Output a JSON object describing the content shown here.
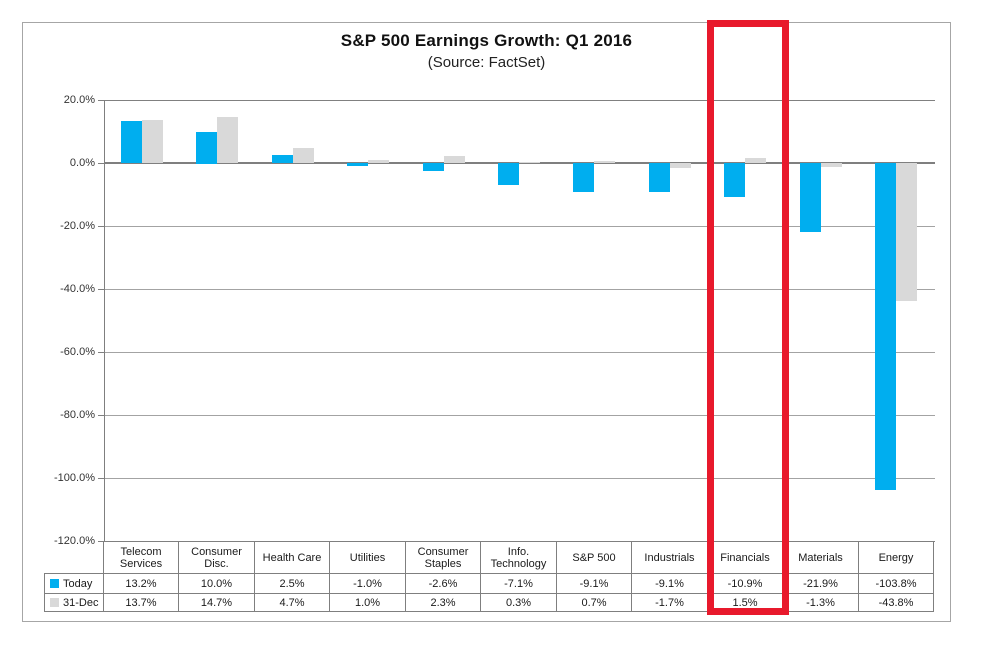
{
  "chart_data": {
    "type": "bar",
    "title": "S&P 500 Earnings Growth: Q1 2016",
    "subtitle": "(Source: FactSet)",
    "categories": [
      "Telecom Services",
      "Consumer Disc.",
      "Health Care",
      "Utilities",
      "Consumer Staples",
      "Info. Technology",
      "S&P 500",
      "Industrials",
      "Financials",
      "Materials",
      "Energy"
    ],
    "series": [
      {
        "name": "Today",
        "color": "#00AEEF",
        "values": [
          13.2,
          10.0,
          2.5,
          -1.0,
          -2.6,
          -7.1,
          -9.1,
          -9.1,
          -10.9,
          -21.9,
          -103.8
        ]
      },
      {
        "name": "31-Dec",
        "color": "#D9D9D9",
        "values": [
          13.7,
          14.7,
          4.7,
          1.0,
          2.3,
          0.3,
          0.7,
          -1.7,
          1.5,
          -1.3,
          -43.8
        ]
      }
    ],
    "y_axis": {
      "min": -120,
      "max": 20,
      "step": 20,
      "tick_labels": [
        "20.0%",
        "0.0%",
        "-20.0%",
        "-40.0%",
        "-60.0%",
        "-80.0%",
        "-100.0%",
        "-120.0%"
      ]
    },
    "grid": true,
    "legend_position": "data-table-left",
    "data_table": {
      "rows": [
        {
          "label": "Today",
          "marker_color": "#00AEEF",
          "values": [
            "13.2%",
            "10.0%",
            "2.5%",
            "-1.0%",
            "-2.6%",
            "-7.1%",
            "-9.1%",
            "-9.1%",
            "-10.9%",
            "-21.9%",
            "-103.8%"
          ]
        },
        {
          "label": "31-Dec",
          "marker_color": "#D9D9D9",
          "values": [
            "13.7%",
            "14.7%",
            "4.7%",
            "1.0%",
            "2.3%",
            "0.3%",
            "0.7%",
            "-1.7%",
            "1.5%",
            "-1.3%",
            "-43.8%"
          ]
        }
      ]
    },
    "highlight": {
      "category": "Financials",
      "color": "#E8192C"
    }
  }
}
